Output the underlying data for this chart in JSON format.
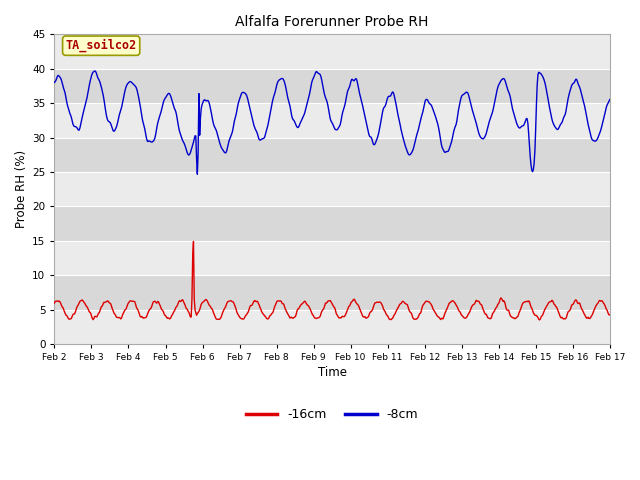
{
  "title": "Alfalfa Forerunner Probe RH",
  "xlabel": "Time",
  "ylabel": "Probe RH (%)",
  "ylim": [
    0,
    45
  ],
  "yticks": [
    0,
    5,
    10,
    15,
    20,
    25,
    30,
    35,
    40,
    45
  ],
  "xlim": [
    0,
    15
  ],
  "xtick_labels": [
    "Feb 2",
    "Feb 3",
    "Feb 4",
    "Feb 5",
    "Feb 6",
    "Feb 7",
    "Feb 8",
    "Feb 9",
    "Feb 10",
    "Feb 11",
    "Feb 12",
    "Feb 13",
    "Feb 14",
    "Feb 15",
    "Feb 16",
    "Feb 17"
  ],
  "legend_label_16": "-16cm",
  "legend_label_8": "-8cm",
  "legend_color_16": "#dd0000",
  "legend_color_8": "#0000cc",
  "annotation_text": "TA_soilco2",
  "annotation_bg": "#ffffcc",
  "annotation_border": "#999900",
  "annotation_text_color": "#aa0000",
  "line_color_16": "#dd0000",
  "line_color_8": "#0000cc",
  "band_light": "#ebebeb",
  "band_dark": "#d8d8d8",
  "fig_bg": "#ffffff",
  "plot_bg": "#e8e8e8"
}
